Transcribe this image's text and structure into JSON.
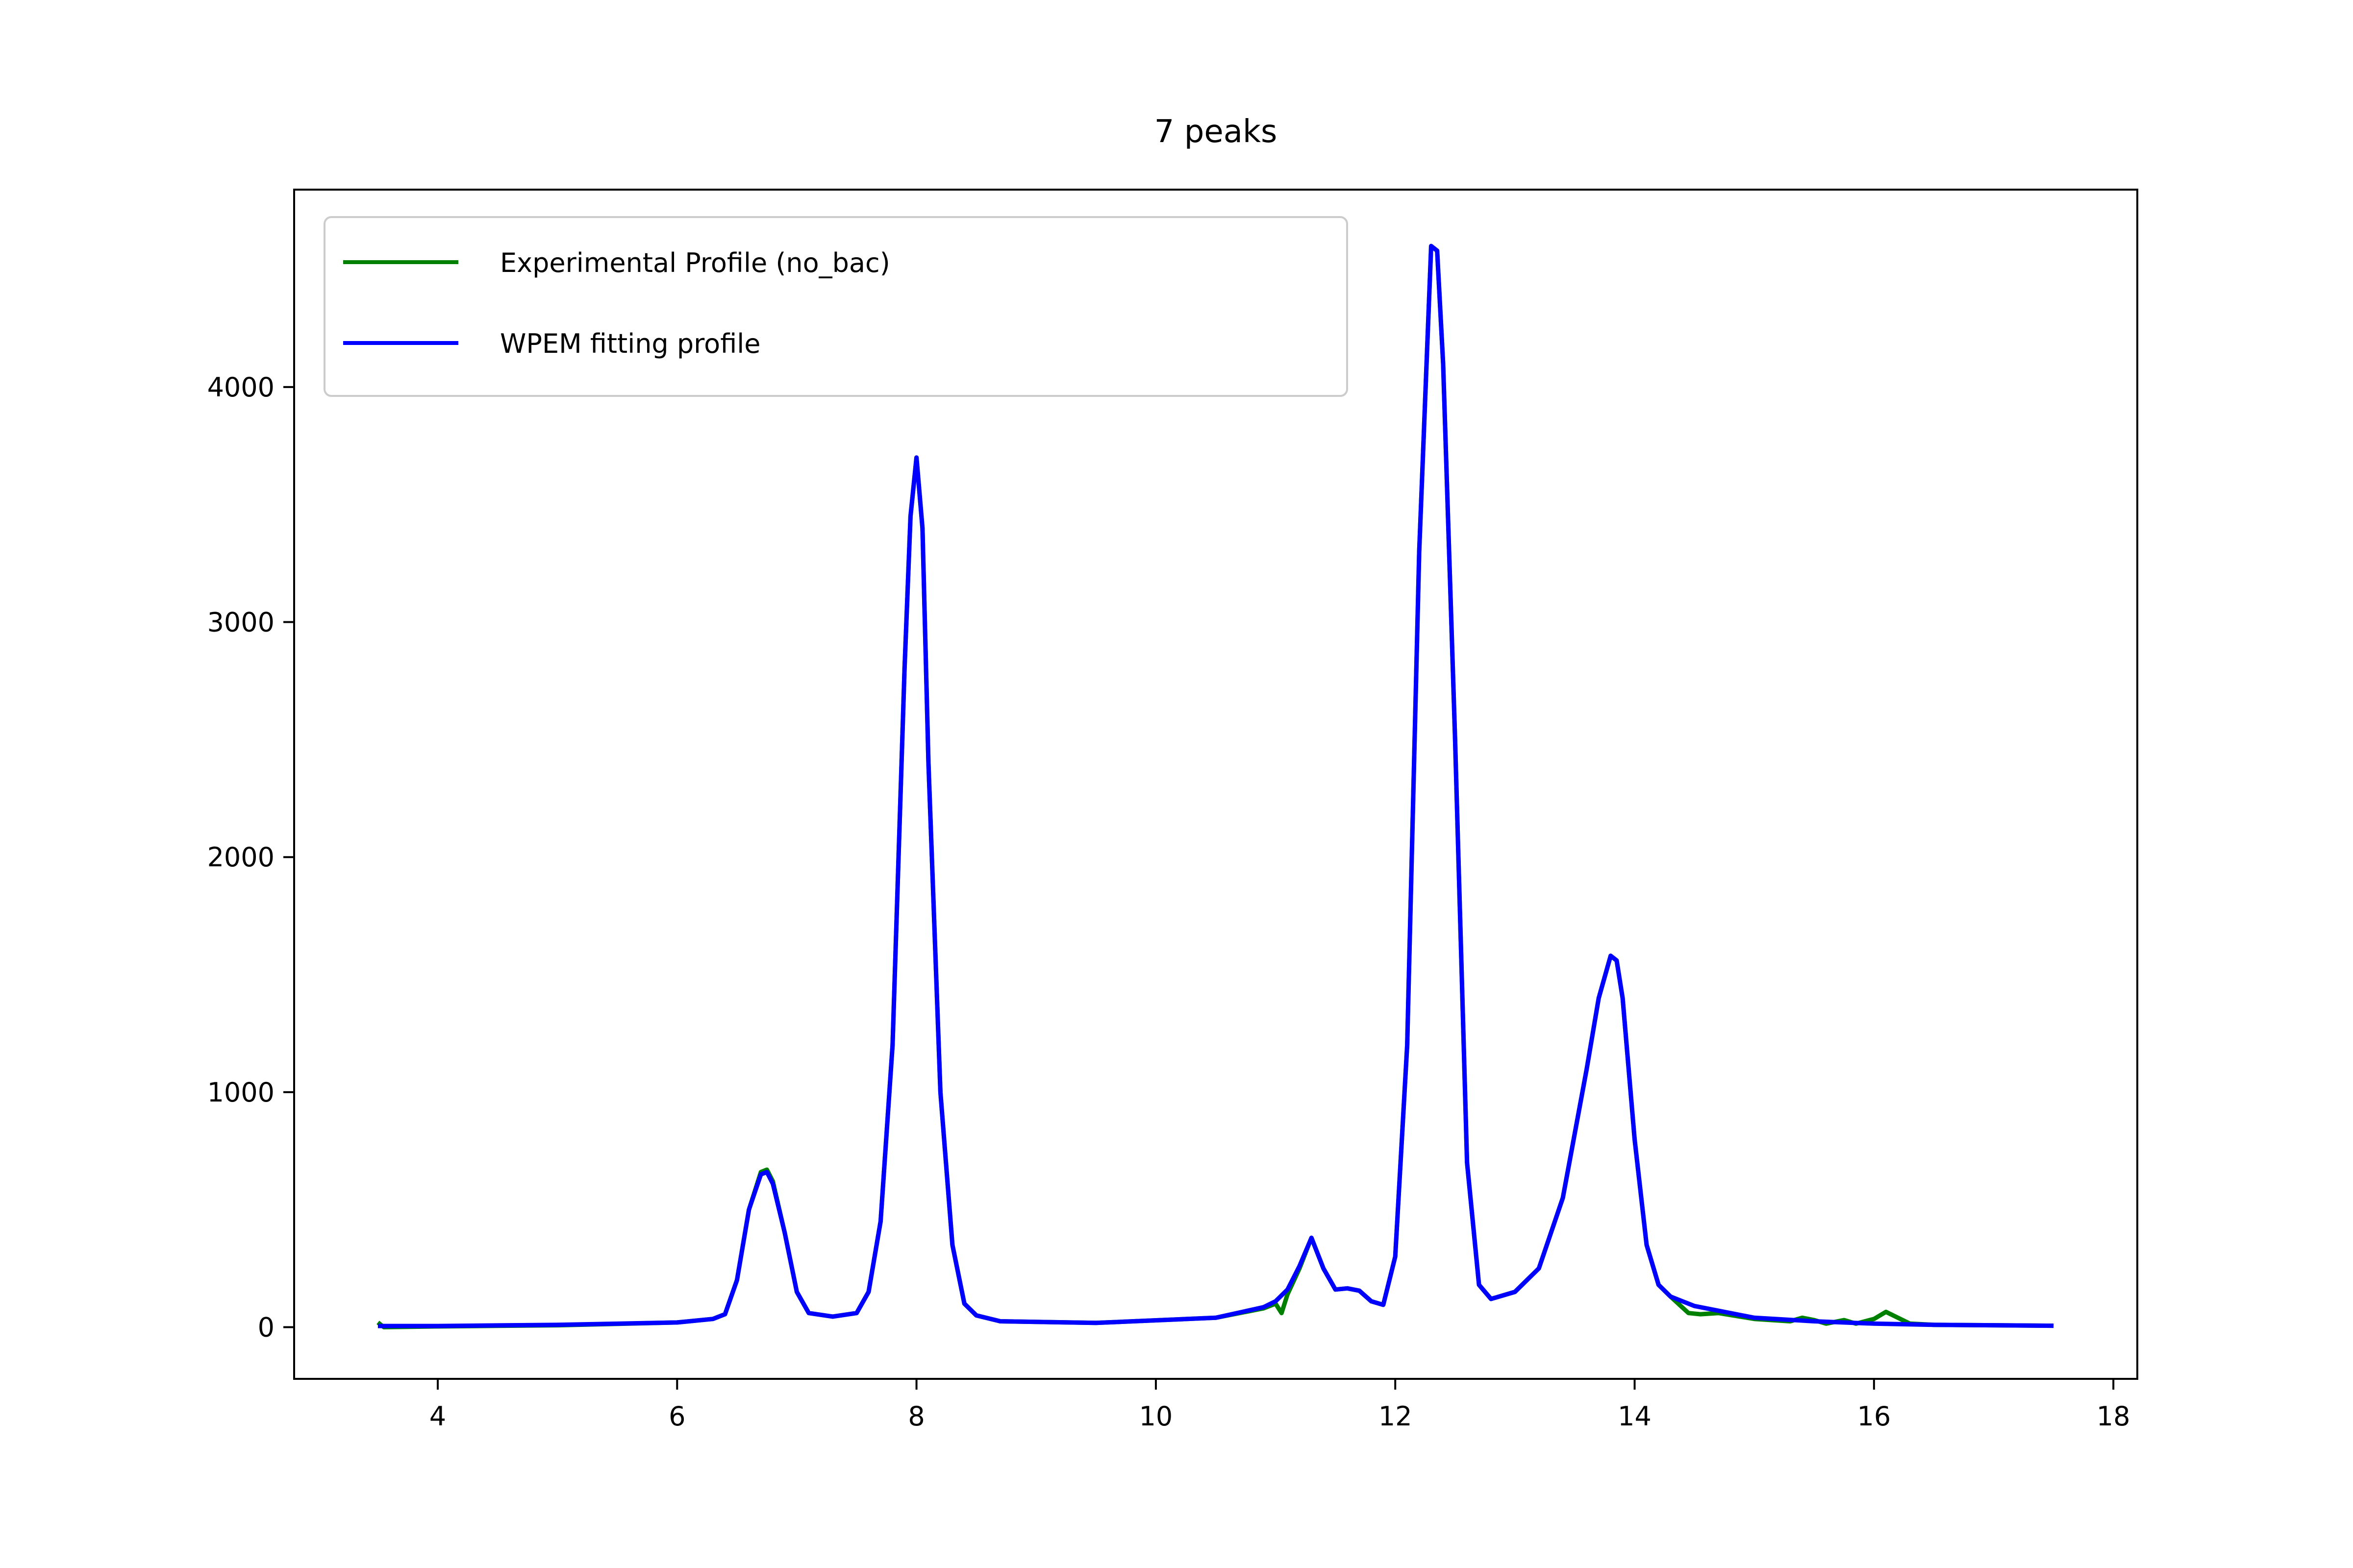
{
  "chart_data": {
    "type": "line",
    "title": "7 peaks",
    "xlabel": "",
    "ylabel": "",
    "xlim": [
      2.8,
      18.2
    ],
    "ylim": [
      -220,
      4840
    ],
    "x_ticks": [
      4,
      6,
      8,
      10,
      12,
      14,
      16,
      18
    ],
    "y_ticks": [
      0,
      1000,
      2000,
      3000,
      4000
    ],
    "grid": false,
    "legend_position": "upper-left",
    "series": [
      {
        "name": "Experimental  Profile (no_bac)",
        "color": "#008000",
        "points": [
          [
            3.5,
            20
          ],
          [
            3.55,
            0
          ],
          [
            4.0,
            3
          ],
          [
            5.0,
            8
          ],
          [
            6.0,
            20
          ],
          [
            6.3,
            35
          ],
          [
            6.4,
            55
          ],
          [
            6.5,
            200
          ],
          [
            6.6,
            500
          ],
          [
            6.7,
            660
          ],
          [
            6.75,
            670
          ],
          [
            6.8,
            620
          ],
          [
            6.9,
            400
          ],
          [
            7.0,
            150
          ],
          [
            7.1,
            60
          ],
          [
            7.3,
            45
          ],
          [
            7.5,
            60
          ],
          [
            7.6,
            150
          ],
          [
            7.7,
            450
          ],
          [
            7.8,
            1200
          ],
          [
            7.9,
            2800
          ],
          [
            7.95,
            3450
          ],
          [
            8.0,
            3700
          ],
          [
            8.05,
            3400
          ],
          [
            8.1,
            2400
          ],
          [
            8.2,
            1000
          ],
          [
            8.3,
            350
          ],
          [
            8.4,
            100
          ],
          [
            8.5,
            50
          ],
          [
            8.7,
            25
          ],
          [
            9.5,
            18
          ],
          [
            10.5,
            40
          ],
          [
            10.9,
            80
          ],
          [
            11.0,
            100
          ],
          [
            11.05,
            60
          ],
          [
            11.1,
            140
          ],
          [
            11.2,
            250
          ],
          [
            11.3,
            380
          ],
          [
            11.4,
            250
          ],
          [
            11.5,
            160
          ],
          [
            11.6,
            165
          ],
          [
            11.7,
            155
          ],
          [
            11.8,
            110
          ],
          [
            11.9,
            95
          ],
          [
            12.0,
            300
          ],
          [
            12.1,
            1200
          ],
          [
            12.2,
            3300
          ],
          [
            12.3,
            4600
          ],
          [
            12.35,
            4580
          ],
          [
            12.4,
            4100
          ],
          [
            12.5,
            2500
          ],
          [
            12.6,
            700
          ],
          [
            12.7,
            180
          ],
          [
            12.8,
            120
          ],
          [
            13.0,
            150
          ],
          [
            13.2,
            250
          ],
          [
            13.4,
            550
          ],
          [
            13.6,
            1100
          ],
          [
            13.7,
            1400
          ],
          [
            13.8,
            1580
          ],
          [
            13.85,
            1560
          ],
          [
            13.9,
            1400
          ],
          [
            14.0,
            800
          ],
          [
            14.1,
            350
          ],
          [
            14.2,
            180
          ],
          [
            14.3,
            130
          ],
          [
            14.45,
            60
          ],
          [
            14.55,
            55
          ],
          [
            14.7,
            60
          ],
          [
            15.0,
            35
          ],
          [
            15.3,
            25
          ],
          [
            15.4,
            40
          ],
          [
            15.5,
            30
          ],
          [
            15.6,
            15
          ],
          [
            15.75,
            30
          ],
          [
            15.85,
            15
          ],
          [
            16.0,
            35
          ],
          [
            16.1,
            65
          ],
          [
            16.2,
            40
          ],
          [
            16.3,
            15
          ],
          [
            16.5,
            10
          ],
          [
            17.0,
            8
          ],
          [
            17.5,
            6
          ]
        ]
      },
      {
        "name": "WPEM fitting profile",
        "color": "#0000ff",
        "points": [
          [
            3.5,
            5
          ],
          [
            4.0,
            5
          ],
          [
            5.0,
            10
          ],
          [
            6.0,
            20
          ],
          [
            6.3,
            35
          ],
          [
            6.4,
            55
          ],
          [
            6.5,
            200
          ],
          [
            6.6,
            500
          ],
          [
            6.7,
            650
          ],
          [
            6.75,
            660
          ],
          [
            6.8,
            610
          ],
          [
            6.9,
            400
          ],
          [
            7.0,
            150
          ],
          [
            7.1,
            60
          ],
          [
            7.3,
            45
          ],
          [
            7.5,
            60
          ],
          [
            7.6,
            150
          ],
          [
            7.7,
            450
          ],
          [
            7.8,
            1200
          ],
          [
            7.9,
            2800
          ],
          [
            7.95,
            3450
          ],
          [
            8.0,
            3700
          ],
          [
            8.05,
            3400
          ],
          [
            8.1,
            2400
          ],
          [
            8.2,
            1000
          ],
          [
            8.3,
            350
          ],
          [
            8.4,
            100
          ],
          [
            8.5,
            50
          ],
          [
            8.7,
            25
          ],
          [
            9.5,
            18
          ],
          [
            10.5,
            40
          ],
          [
            10.9,
            85
          ],
          [
            11.0,
            110
          ],
          [
            11.1,
            160
          ],
          [
            11.2,
            260
          ],
          [
            11.3,
            380
          ],
          [
            11.4,
            250
          ],
          [
            11.5,
            160
          ],
          [
            11.6,
            165
          ],
          [
            11.7,
            155
          ],
          [
            11.8,
            110
          ],
          [
            11.9,
            95
          ],
          [
            12.0,
            300
          ],
          [
            12.1,
            1200
          ],
          [
            12.2,
            3300
          ],
          [
            12.3,
            4600
          ],
          [
            12.35,
            4580
          ],
          [
            12.4,
            4100
          ],
          [
            12.5,
            2500
          ],
          [
            12.6,
            700
          ],
          [
            12.7,
            180
          ],
          [
            12.8,
            120
          ],
          [
            13.0,
            150
          ],
          [
            13.2,
            250
          ],
          [
            13.4,
            550
          ],
          [
            13.6,
            1100
          ],
          [
            13.7,
            1400
          ],
          [
            13.8,
            1580
          ],
          [
            13.85,
            1560
          ],
          [
            13.9,
            1400
          ],
          [
            14.0,
            800
          ],
          [
            14.1,
            350
          ],
          [
            14.2,
            180
          ],
          [
            14.3,
            130
          ],
          [
            14.5,
            90
          ],
          [
            15.0,
            40
          ],
          [
            15.5,
            25
          ],
          [
            16.0,
            15
          ],
          [
            16.5,
            10
          ],
          [
            17.0,
            8
          ],
          [
            17.5,
            6
          ]
        ]
      }
    ]
  }
}
